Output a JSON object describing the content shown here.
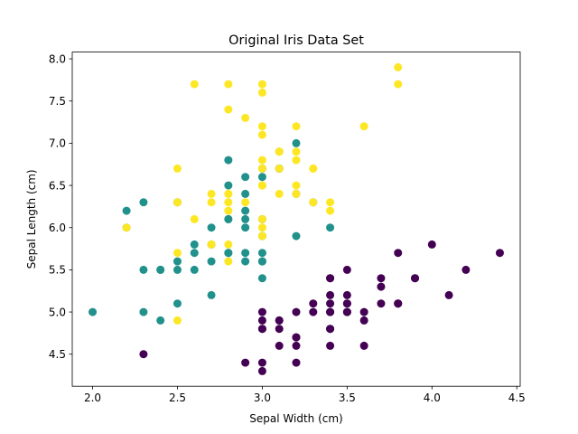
{
  "chart_data": {
    "type": "scatter",
    "title": "Original Iris Data Set",
    "xlabel": "Sepal Width (cm)",
    "ylabel": "Sepal Length (cm)",
    "xlim": [
      1.88,
      4.52
    ],
    "ylim": [
      4.12,
      8.08
    ],
    "xticks": [
      "2.0",
      "2.5",
      "3.0",
      "3.5",
      "4.0",
      "4.5"
    ],
    "yticks": [
      "4.5",
      "5.0",
      "5.5",
      "6.0",
      "6.5",
      "7.0",
      "7.5",
      "8.0"
    ],
    "grid": false,
    "legend": "none",
    "series": [
      {
        "color": "#440154",
        "points": [
          [
            3.5,
            5.1
          ],
          [
            3.0,
            4.9
          ],
          [
            3.2,
            4.7
          ],
          [
            3.1,
            4.6
          ],
          [
            3.6,
            5.0
          ],
          [
            3.9,
            5.4
          ],
          [
            3.4,
            4.6
          ],
          [
            3.4,
            5.0
          ],
          [
            2.9,
            4.4
          ],
          [
            3.1,
            4.9
          ],
          [
            3.7,
            5.4
          ],
          [
            3.4,
            4.8
          ],
          [
            3.0,
            4.8
          ],
          [
            3.0,
            4.3
          ],
          [
            4.0,
            5.8
          ],
          [
            4.4,
            5.7
          ],
          [
            3.9,
            5.4
          ],
          [
            3.5,
            5.1
          ],
          [
            3.8,
            5.7
          ],
          [
            3.8,
            5.1
          ],
          [
            3.4,
            5.4
          ],
          [
            3.7,
            5.1
          ],
          [
            3.6,
            4.6
          ],
          [
            3.3,
            5.1
          ],
          [
            3.4,
            4.8
          ],
          [
            3.0,
            5.0
          ],
          [
            3.4,
            5.0
          ],
          [
            3.5,
            5.2
          ],
          [
            3.4,
            5.2
          ],
          [
            3.2,
            4.7
          ],
          [
            3.1,
            4.8
          ],
          [
            3.4,
            5.4
          ],
          [
            4.1,
            5.2
          ],
          [
            4.2,
            5.5
          ],
          [
            3.1,
            4.9
          ],
          [
            3.2,
            5.0
          ],
          [
            3.5,
            5.5
          ],
          [
            3.6,
            4.9
          ],
          [
            3.0,
            4.4
          ],
          [
            3.4,
            5.1
          ],
          [
            3.5,
            5.0
          ],
          [
            2.3,
            4.5
          ],
          [
            3.2,
            4.4
          ],
          [
            3.5,
            5.0
          ],
          [
            3.8,
            5.1
          ],
          [
            3.0,
            4.8
          ],
          [
            3.8,
            5.1
          ],
          [
            3.2,
            4.6
          ],
          [
            3.7,
            5.3
          ],
          [
            3.3,
            5.0
          ]
        ]
      },
      {
        "color": "#21918c",
        "points": [
          [
            3.2,
            7.0
          ],
          [
            3.2,
            6.4
          ],
          [
            3.1,
            6.9
          ],
          [
            2.3,
            5.5
          ],
          [
            2.8,
            6.5
          ],
          [
            2.8,
            5.7
          ],
          [
            3.3,
            6.3
          ],
          [
            2.4,
            4.9
          ],
          [
            2.9,
            6.6
          ],
          [
            2.7,
            5.2
          ],
          [
            2.0,
            5.0
          ],
          [
            3.0,
            5.9
          ],
          [
            2.2,
            6.0
          ],
          [
            2.9,
            6.1
          ],
          [
            2.9,
            5.6
          ],
          [
            3.1,
            6.7
          ],
          [
            3.0,
            5.6
          ],
          [
            2.7,
            5.8
          ],
          [
            2.2,
            6.2
          ],
          [
            2.5,
            5.6
          ],
          [
            3.2,
            5.9
          ],
          [
            2.8,
            6.1
          ],
          [
            2.5,
            6.3
          ],
          [
            2.8,
            6.1
          ],
          [
            2.9,
            6.4
          ],
          [
            3.0,
            6.6
          ],
          [
            2.8,
            6.8
          ],
          [
            3.0,
            6.7
          ],
          [
            2.9,
            6.0
          ],
          [
            2.6,
            5.7
          ],
          [
            2.4,
            5.5
          ],
          [
            2.4,
            5.5
          ],
          [
            2.7,
            5.8
          ],
          [
            2.7,
            6.0
          ],
          [
            3.0,
            5.4
          ],
          [
            3.4,
            6.0
          ],
          [
            3.1,
            6.7
          ],
          [
            2.3,
            6.3
          ],
          [
            3.0,
            5.6
          ],
          [
            2.5,
            5.5
          ],
          [
            2.6,
            5.5
          ],
          [
            3.0,
            6.1
          ],
          [
            2.6,
            5.8
          ],
          [
            2.3,
            5.0
          ],
          [
            2.7,
            5.6
          ],
          [
            3.0,
            5.7
          ],
          [
            2.9,
            5.7
          ],
          [
            2.9,
            6.2
          ],
          [
            2.5,
            5.1
          ],
          [
            2.8,
            5.7
          ]
        ]
      },
      {
        "color": "#fde725",
        "points": [
          [
            3.3,
            6.3
          ],
          [
            2.7,
            5.8
          ],
          [
            3.0,
            7.1
          ],
          [
            2.9,
            6.3
          ],
          [
            3.0,
            6.5
          ],
          [
            3.0,
            7.6
          ],
          [
            2.5,
            4.9
          ],
          [
            2.9,
            7.3
          ],
          [
            2.5,
            6.7
          ],
          [
            3.6,
            7.2
          ],
          [
            3.2,
            6.5
          ],
          [
            2.7,
            6.4
          ],
          [
            3.0,
            6.8
          ],
          [
            2.5,
            5.7
          ],
          [
            2.8,
            5.8
          ],
          [
            3.2,
            6.4
          ],
          [
            3.0,
            6.5
          ],
          [
            3.8,
            7.7
          ],
          [
            2.6,
            7.7
          ],
          [
            2.2,
            6.0
          ],
          [
            3.2,
            6.9
          ],
          [
            2.8,
            5.6
          ],
          [
            2.8,
            7.7
          ],
          [
            2.7,
            6.3
          ],
          [
            3.3,
            6.7
          ],
          [
            3.2,
            7.2
          ],
          [
            2.8,
            6.2
          ],
          [
            3.0,
            6.1
          ],
          [
            2.8,
            6.4
          ],
          [
            3.0,
            7.2
          ],
          [
            2.8,
            7.4
          ],
          [
            3.8,
            7.9
          ],
          [
            2.8,
            6.4
          ],
          [
            2.8,
            6.3
          ],
          [
            2.6,
            6.1
          ],
          [
            3.0,
            7.7
          ],
          [
            3.4,
            6.3
          ],
          [
            3.1,
            6.4
          ],
          [
            3.0,
            6.0
          ],
          [
            3.1,
            6.9
          ],
          [
            3.1,
            6.7
          ],
          [
            3.1,
            6.9
          ],
          [
            2.7,
            5.8
          ],
          [
            3.2,
            6.8
          ],
          [
            3.3,
            6.7
          ],
          [
            3.0,
            6.7
          ],
          [
            2.5,
            6.3
          ],
          [
            3.0,
            6.5
          ],
          [
            3.4,
            6.2
          ],
          [
            3.0,
            5.9
          ]
        ]
      }
    ]
  }
}
